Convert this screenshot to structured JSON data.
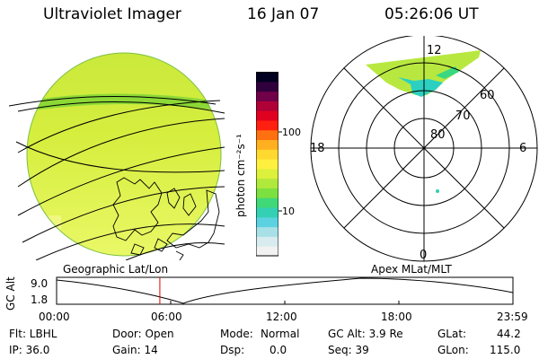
{
  "header": {
    "instrument": "Ultraviolet Imager",
    "date": "16 Jan 07",
    "time": "05:26:06 UT"
  },
  "panels": {
    "geo_label": "Geographic Lat/Lon",
    "polar_label": "Apex MLat/MLT"
  },
  "colorbar": {
    "unit_label": "photon cm⁻²s⁻¹",
    "tick_100": "100",
    "tick_10": "10",
    "colors": [
      "#f2f2f2",
      "#d8ecf0",
      "#a8e0e8",
      "#5cd2e0",
      "#34d0b4",
      "#40d878",
      "#7ce040",
      "#b0e83c",
      "#dcf03c",
      "#fff040",
      "#ffd830",
      "#ffb020",
      "#ff7010",
      "#ff2010",
      "#e00020",
      "#b00038",
      "#700048",
      "#30003c",
      "#000020"
    ]
  },
  "polar": {
    "lat_labels": [
      "80",
      "70",
      "60"
    ],
    "mlt_labels": {
      "top": "12",
      "left": "18",
      "right": "6",
      "bottom": "0"
    }
  },
  "timeline": {
    "ylabel": "GC Alt",
    "ymax": "9.0",
    "ymin": "1.8",
    "ticks": [
      "00:00",
      "06:00",
      "12:00",
      "18:00",
      "23:59"
    ],
    "current_hour": 5.43
  },
  "info": {
    "filter": "Flt: LBHL",
    "door": "Door: Open",
    "mode_label": "Mode:",
    "mode_value": "Normal",
    "gc_alt": "GC Alt: 3.9 Re",
    "glat_label": "GLat:",
    "glat_value": "44.2",
    "ip": "IP: 36.0",
    "gain": "Gain: 14",
    "dsp_label": "Dsp:",
    "dsp_value": "0.0",
    "seq": "Seq: 39",
    "glon_label": "GLon:",
    "glon_value": "115.0"
  }
}
